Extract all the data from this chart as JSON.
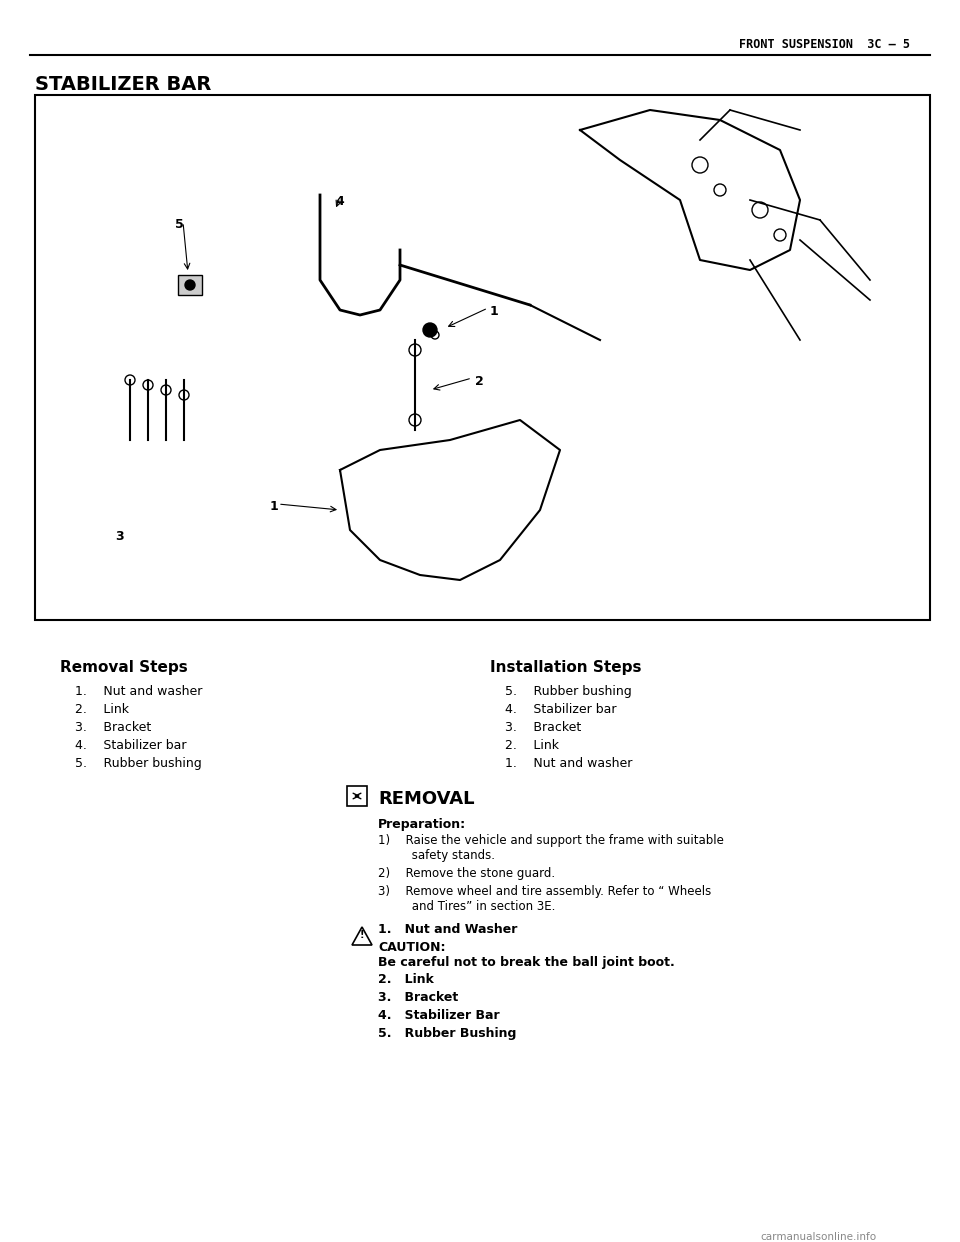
{
  "page_header_right": "FRONT SUSPENSION  3C – 5",
  "section_title": "STABILIZER BAR",
  "bg_color": "#ffffff",
  "text_color": "#000000",
  "diagram_box_color": "#000000",
  "removal_steps_title": "Removal Steps",
  "removal_steps": [
    "1.  Nut and washer",
    "2.  Link",
    "3.  Bracket",
    "4.  Stabilizer bar",
    "5.  Rubber bushing"
  ],
  "installation_steps_title": "Installation Steps",
  "installation_steps": [
    "5.  Rubber bushing",
    "4.  Stabilizer bar",
    "3.  Bracket",
    "2.  Link",
    "1.  Nut and washer"
  ],
  "removal_section_title": "REMOVAL",
  "preparation_title": "Preparation:",
  "preparation_steps": [
    "1)  Raise the vehicle and support the frame with suitable\n         safety stands.",
    "2)  Remove the stone guard.",
    "3)  Remove wheel and tire assembly. Refer to “ Wheels\n         and Tires” in section 3E."
  ],
  "step1_bold": "1.   Nut and Washer",
  "caution_label": "CAUTION:",
  "caution_text": "Be careful not to break the ball joint boot.",
  "step2_bold": "2.   Link",
  "step3_bold": "3.   Bracket",
  "step4_bold": "4.   Stabilizer Bar",
  "step5_bold": "5.   Rubber Bushing",
  "watermark": "carmanualsonline.info"
}
